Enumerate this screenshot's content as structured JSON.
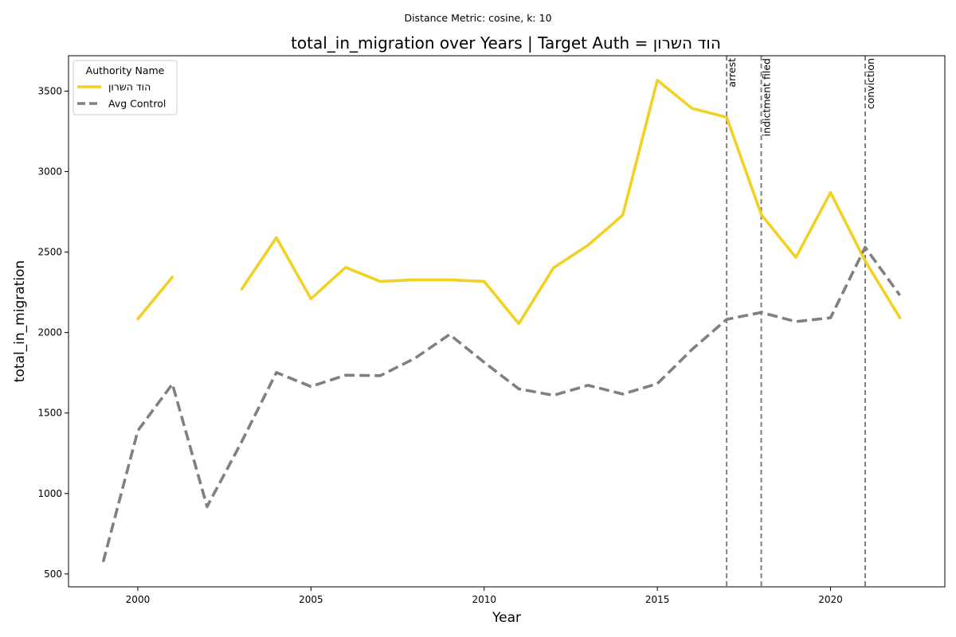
{
  "chart_data": {
    "type": "line",
    "subtitle": "Distance Metric: cosine, k: 10",
    "title": "total_in_migration over Years | Target Auth = הוד השרון",
    "xlabel": "Year",
    "ylabel": "total_in_migration",
    "xlim": [
      1998,
      2023.3
    ],
    "ylim": [
      420,
      3720
    ],
    "x_ticks": [
      2000,
      2005,
      2010,
      2015,
      2020
    ],
    "y_ticks": [
      500,
      1000,
      1500,
      2000,
      2500,
      3000,
      3500
    ],
    "grid": false,
    "legend": {
      "title": "Authority Name",
      "placement": "top-left"
    },
    "series": [
      {
        "name": "הוד השרון",
        "color": "#f2d024",
        "style": "solid",
        "points": [
          [
            2000,
            2085
          ],
          [
            2001,
            2345
          ],
          [
            2002,
            null
          ],
          [
            2003,
            2270
          ],
          [
            2004,
            2590
          ],
          [
            2005,
            2210
          ],
          [
            2006,
            2405
          ],
          [
            2007,
            2318
          ],
          [
            2008,
            2328
          ],
          [
            2009,
            2328
          ],
          [
            2010,
            2318
          ],
          [
            2011,
            2055
          ],
          [
            2012,
            2402
          ],
          [
            2013,
            2543
          ],
          [
            2014,
            2730
          ],
          [
            2015,
            3568
          ],
          [
            2016,
            3393
          ],
          [
            2017,
            3338
          ],
          [
            2018,
            2733
          ],
          [
            2019,
            2467
          ],
          [
            2020,
            2870
          ],
          [
            2021,
            2445
          ],
          [
            2022,
            2092
          ]
        ]
      },
      {
        "name": "Avg Control",
        "color": "#808080",
        "style": "dashed",
        "points": [
          [
            1999,
            575
          ],
          [
            2000,
            1390
          ],
          [
            2001,
            1680
          ],
          [
            2002,
            918
          ],
          [
            2003,
            1322
          ],
          [
            2004,
            1752
          ],
          [
            2005,
            1665
          ],
          [
            2006,
            1735
          ],
          [
            2007,
            1732
          ],
          [
            2008,
            1840
          ],
          [
            2009,
            1988
          ],
          [
            2010,
            1815
          ],
          [
            2011,
            1650
          ],
          [
            2012,
            1610
          ],
          [
            2013,
            1672
          ],
          [
            2014,
            1618
          ],
          [
            2015,
            1682
          ],
          [
            2016,
            1895
          ],
          [
            2017,
            2082
          ],
          [
            2018,
            2125
          ],
          [
            2019,
            2068
          ],
          [
            2020,
            2092
          ],
          [
            2021,
            2530
          ],
          [
            2022,
            2232
          ]
        ]
      }
    ],
    "annotations": [
      {
        "x": 2017,
        "label": "arrest"
      },
      {
        "x": 2018,
        "label": "indictment filed"
      },
      {
        "x": 2021,
        "label": "conviction"
      }
    ]
  }
}
